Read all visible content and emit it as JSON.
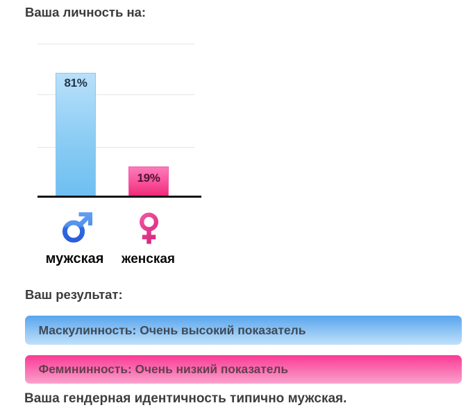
{
  "chart_data": {
    "type": "bar",
    "title": "Ваша личность на:",
    "categories": [
      "мужская",
      "женская"
    ],
    "values": [
      81,
      19
    ],
    "value_labels": [
      "81%",
      "19%"
    ],
    "ylim": [
      0,
      100
    ],
    "grid": true,
    "bar_colors": [
      "#8bccf4",
      "#f8509b"
    ]
  },
  "result": {
    "heading": "Ваш результат:",
    "banners": [
      {
        "id": "masculinity",
        "label": "Маскулинность: Очень высокий показатель",
        "color": "#58a5ed"
      },
      {
        "id": "femininity",
        "label": "Фемининность: Очень низкий показатель",
        "color": "#fa3a95"
      }
    ],
    "conclusion": "Ваша гендерная идентичность типично мужская."
  },
  "icons": {
    "male": "male-sign-icon",
    "female": "female-sign-icon"
  }
}
